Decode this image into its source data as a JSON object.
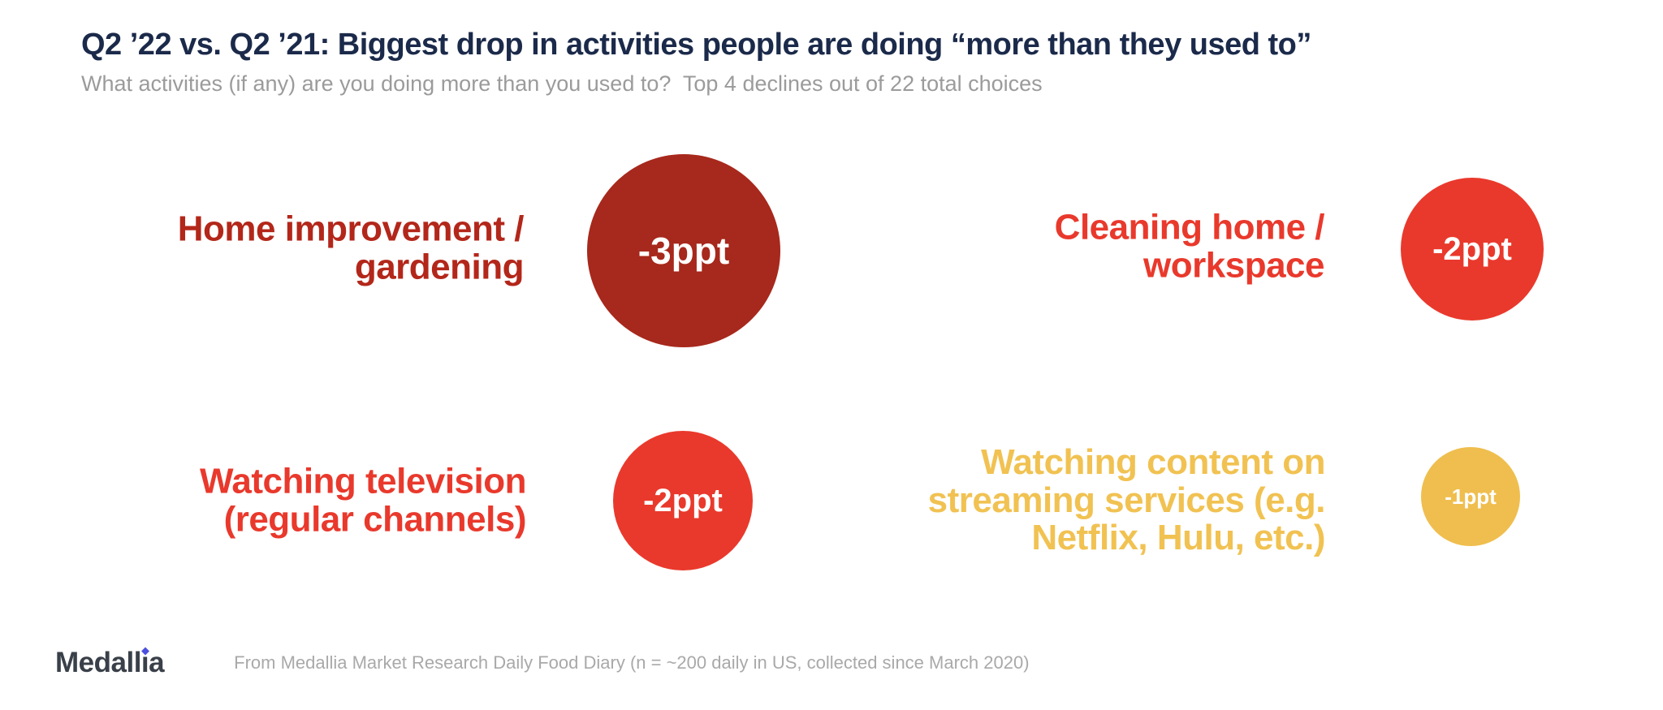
{
  "header": {
    "title": "Q2 ’22 vs. Q2 ’21: Biggest drop in activities people are doing “more than they used to”",
    "subtitle": "What activities (if any) are you doing more than you used to?  Top 4 declines out of 22 total choices"
  },
  "colors": {
    "title": "#1B2A4A",
    "subtitle": "#9B9B9B",
    "background": "#FFFFFF",
    "bubble_text": "#FFFFFF",
    "dark_red": "#A7281C",
    "bright_red": "#E9392C",
    "gold": "#EFBE4E"
  },
  "items": [
    {
      "name": "home-improvement-gardening",
      "label_lines": [
        "Home improvement /",
        "gardening"
      ],
      "value": "-3ppt",
      "value_ppt": -3,
      "label_color": "#B3271A",
      "circle_color": "#A7281C"
    },
    {
      "name": "cleaning-home-workspace",
      "label_lines": [
        "Cleaning home /",
        "workspace"
      ],
      "value": "-2ppt",
      "value_ppt": -2,
      "label_color": "#E9392C",
      "circle_color": "#E9392C"
    },
    {
      "name": "watching-television",
      "label_lines": [
        "Watching television",
        "(regular channels)"
      ],
      "value": "-2ppt",
      "value_ppt": -2,
      "label_color": "#E9392C",
      "circle_color": "#E9392C"
    },
    {
      "name": "streaming-services",
      "label_lines": [
        "Watching content on",
        "streaming services (e.g.",
        "Netflix, Hulu, etc.)"
      ],
      "value": "-1ppt",
      "value_ppt": -1,
      "label_color": "#F1C252",
      "circle_color": "#EFBE4E"
    }
  ],
  "footer": {
    "logo_text": "Medallia",
    "logo_parts": [
      "Medall",
      "ı",
      "a"
    ],
    "logo_color": "#3A4049",
    "logo_dot_color": "#4B50DF",
    "note": "From Medallia Market Research Daily Food Diary (n = ~200 daily in US, collected since March 2020)"
  },
  "chart_data": {
    "type": "bubble",
    "title": "Q2 ’22 vs. Q2 ’21: Biggest drop in activities people are doing “more than they used to”",
    "subtitle": "What activities (if any) are you doing more than you used to?  Top 4 declines out of 22 total choices",
    "categories": [
      "Home improvement / gardening",
      "Cleaning home / workspace",
      "Watching television (regular channels)",
      "Watching content on streaming services (e.g. Netflix, Hulu, etc.)"
    ],
    "values": [
      -3,
      -2,
      -2,
      -1
    ],
    "unit": "ppt",
    "value_labels": [
      "-3ppt",
      "-2ppt",
      "-2ppt",
      "-1ppt"
    ],
    "colors": [
      "#A7281C",
      "#E9392C",
      "#E9392C",
      "#EFBE4E"
    ],
    "layout": "2x2 grid; right-aligned category labels beside circles sized proportionally to magnitude of decline",
    "source_note": "From Medallia Market Research Daily Food Diary (n = ~200 daily in US, collected since March 2020)"
  }
}
